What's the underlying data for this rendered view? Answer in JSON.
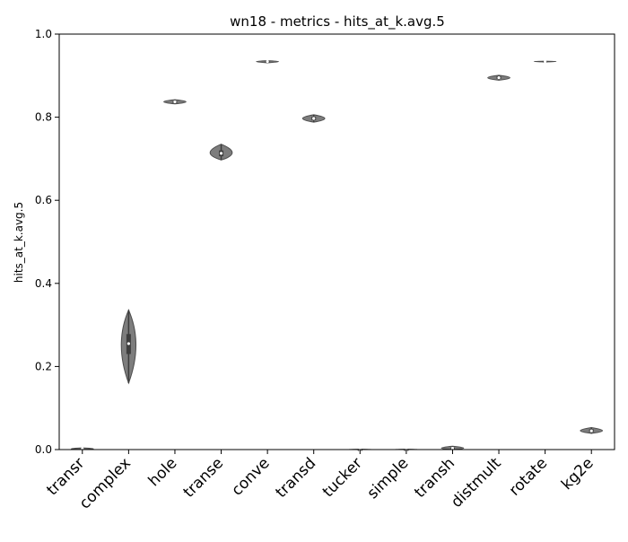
{
  "chart_data": {
    "type": "violin",
    "title": "wn18 - metrics - hits_at_k.avg.5",
    "xlabel": "",
    "ylabel": "hits_at_k.avg.5",
    "ylim": [
      0.0,
      1.0
    ],
    "yticks": [
      "0.0",
      "0.2",
      "0.4",
      "0.6",
      "0.8",
      "1.0"
    ],
    "grid": false,
    "color": "#7d7d7d",
    "categories": [
      "transr",
      "complex",
      "hole",
      "transe",
      "conve",
      "transd",
      "tucker",
      "simple",
      "transh",
      "distmult",
      "rotate",
      "kg2e"
    ],
    "series": [
      {
        "values": [
          {
            "min": 0.0,
            "q1": 0.0,
            "median": 0.002,
            "q3": 0.003,
            "max": 0.004
          },
          {
            "min": 0.16,
            "q1": 0.23,
            "median": 0.255,
            "q3": 0.278,
            "max": 0.336
          },
          {
            "min": 0.832,
            "q1": 0.834,
            "median": 0.837,
            "q3": 0.839,
            "max": 0.842
          },
          {
            "min": 0.697,
            "q1": 0.706,
            "median": 0.713,
            "q3": 0.72,
            "max": 0.735
          },
          {
            "min": 0.931,
            "q1": 0.932,
            "median": 0.934,
            "q3": 0.935,
            "max": 0.936
          },
          {
            "min": 0.788,
            "q1": 0.793,
            "median": 0.797,
            "q3": 0.801,
            "max": 0.806
          },
          {
            "min": 0.0,
            "q1": 0.0,
            "median": 0.0,
            "q3": 0.0,
            "max": 0.001
          },
          {
            "min": 0.0,
            "q1": 0.0,
            "median": 0.0,
            "q3": 0.0,
            "max": 0.001
          },
          {
            "min": 0.0,
            "q1": 0.001,
            "median": 0.003,
            "q3": 0.005,
            "max": 0.008
          },
          {
            "min": 0.889,
            "q1": 0.892,
            "median": 0.895,
            "q3": 0.899,
            "max": 0.901
          },
          {
            "min": 0.933,
            "q1": 0.933,
            "median": 0.934,
            "q3": 0.935,
            "max": 0.935
          },
          {
            "min": 0.039,
            "q1": 0.042,
            "median": 0.045,
            "q3": 0.049,
            "max": 0.053
          }
        ]
      }
    ]
  }
}
